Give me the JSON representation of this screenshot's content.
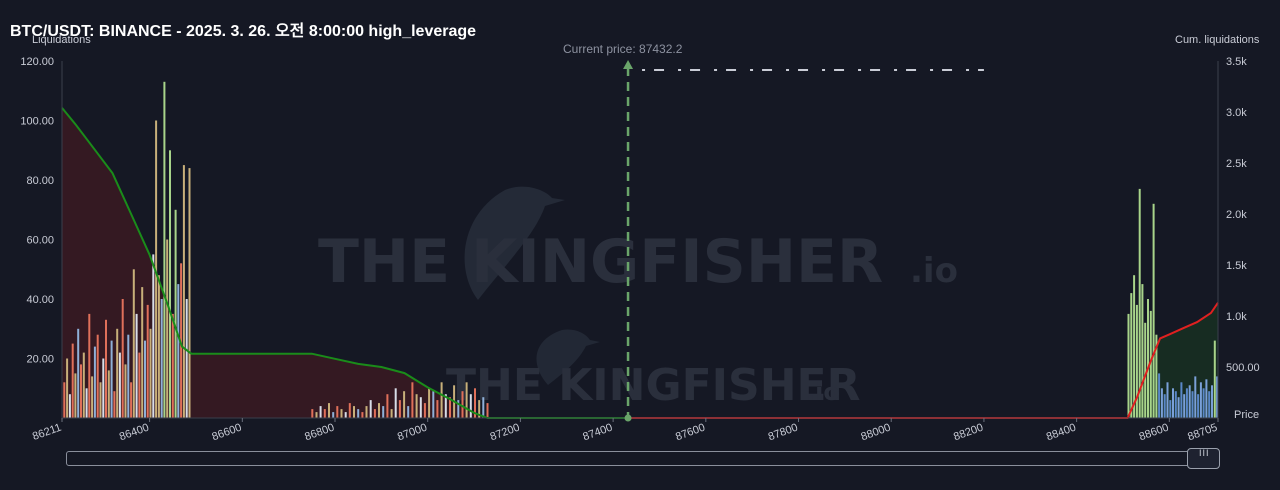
{
  "title": "BTC/USDT: BINANCE - 2025. 3. 26. 오전 8:00:00 high_leverage",
  "labels": {
    "left_axis": "Liquidations",
    "right_axis": "Cum. liquidations",
    "price": "Price",
    "current_price": "Current price: 87432.2"
  },
  "watermark": {
    "main": "THE KINGFISHER",
    "suffix": ".io"
  },
  "scrollbar": {
    "handle_glyph": "III"
  },
  "colors": {
    "background": "#151824",
    "long_cum": "#1a8c1a",
    "short_cum": "#e02020",
    "current_price": "#6aa56a",
    "bars_warm": "#e0705a",
    "bars_khaki": "#c8b07a",
    "bars_green": "#a8d48a",
    "bars_blue": "#5a88c8"
  },
  "chart_data": {
    "type": "bar",
    "title": "BTC/USDT: BINANCE - 2025. 3. 26. 오전 8:00:00 high_leverage",
    "xlabel": "Price",
    "ylabel": "Liquidations",
    "y2label": "Cum. liquidations",
    "xlim": [
      86211,
      88705
    ],
    "ylim": [
      0,
      120
    ],
    "y2lim": [
      0,
      3500
    ],
    "x_ticks": [
      "86211",
      "86400",
      "86600",
      "86800",
      "87000",
      "87200",
      "87400",
      "87600",
      "87800",
      "88000",
      "88200",
      "88400",
      "88600",
      "88705"
    ],
    "y_ticks": [
      "20.00",
      "40.00",
      "60.00",
      "80.00",
      "100.00",
      "120.00"
    ],
    "y2_ticks": [
      "500.00",
      "1.0k",
      "1.5k",
      "2.0k",
      "2.5k",
      "3.0k",
      "3.5k"
    ],
    "current_price": 87432.2,
    "legend": "none",
    "grid": false,
    "series": [
      {
        "name": "",
        "kind": "liquidation_bars_long_side",
        "x": [
          86216,
          86222,
          86228,
          86234,
          86240,
          86246,
          86252,
          86258,
          86264,
          86270,
          86276,
          86282,
          86288,
          86294,
          86300,
          86306,
          86312,
          86318,
          86324,
          86330,
          86336,
          86342,
          86348,
          86354,
          86360,
          86366,
          86372,
          86378,
          86384,
          86390,
          86396,
          86402,
          86408,
          86414,
          86420,
          86426,
          86432,
          86438,
          86444,
          86450,
          86456,
          86462,
          86468,
          86474,
          86480,
          86486
        ],
        "values": [
          12,
          20,
          8,
          25,
          15,
          30,
          18,
          22,
          10,
          35,
          14,
          24,
          28,
          12,
          20,
          33,
          16,
          26,
          9,
          30,
          22,
          40,
          18,
          28,
          12,
          50,
          35,
          22,
          44,
          26,
          38,
          30,
          55,
          100,
          48,
          40,
          113,
          60,
          90,
          35,
          70,
          45,
          52,
          85,
          40,
          84
        ]
      },
      {
        "name": "",
        "kind": "liquidation_bars_mid_cluster",
        "x": [
          86751,
          86760,
          86769,
          86778,
          86787,
          86796,
          86805,
          86814,
          86823,
          86832,
          86841,
          86850,
          86859,
          86868,
          86877,
          86886,
          86895,
          86904,
          86913,
          86922,
          86931,
          86940,
          86949,
          86958,
          86967,
          86976,
          86985,
          86994,
          87003,
          87012,
          87021,
          87030,
          87039,
          87048,
          87057,
          87066,
          87075,
          87084,
          87093,
          87102,
          87111,
          87120,
          87129
        ],
        "values": [
          3,
          2,
          4,
          3,
          5,
          2,
          4,
          3,
          2,
          5,
          4,
          3,
          2,
          4,
          6,
          3,
          5,
          4,
          8,
          3,
          10,
          6,
          9,
          4,
          12,
          8,
          7,
          5,
          10,
          9,
          6,
          12,
          8,
          7,
          11,
          6,
          9,
          12,
          8,
          10,
          6,
          7,
          5
        ]
      },
      {
        "name": "",
        "kind": "liquidation_bars_short_side",
        "x": [
          88512,
          88518,
          88524,
          88530,
          88536,
          88542,
          88548,
          88554,
          88560,
          88566,
          88572,
          88578,
          88584,
          88590,
          88596,
          88602,
          88608,
          88614,
          88620,
          88626,
          88632,
          88638,
          88644,
          88650,
          88656,
          88662,
          88668,
          88674,
          88680,
          88686,
          88692,
          88698,
          88703
        ],
        "values": [
          35,
          42,
          48,
          38,
          77,
          45,
          32,
          40,
          36,
          72,
          28,
          15,
          10,
          8,
          12,
          6,
          10,
          9,
          7,
          12,
          8,
          10,
          11,
          9,
          14,
          8,
          12,
          10,
          13,
          9,
          11,
          26,
          14
        ]
      },
      {
        "name": "",
        "kind": "cumulative_long_liquidations",
        "x": [
          86211,
          86240,
          86280,
          86320,
          86360,
          86400,
          86440,
          86470,
          86490,
          86550,
          86600,
          86650,
          86700,
          86750,
          86800,
          86850,
          86900,
          86950,
          87000,
          87050,
          87100,
          87129,
          87200,
          87432.2
        ],
        "values": [
          3040,
          2880,
          2640,
          2400,
          2000,
          1600,
          1100,
          700,
          630,
          630,
          630,
          630,
          630,
          630,
          580,
          530,
          500,
          440,
          300,
          180,
          50,
          0,
          0,
          0
        ]
      },
      {
        "name": "",
        "kind": "cumulative_short_liquidations",
        "x": [
          87432.2,
          87600,
          88000,
          88400,
          88510,
          88530,
          88560,
          88580,
          88600,
          88630,
          88660,
          88690,
          88705
        ],
        "values": [
          0,
          0,
          0,
          0,
          0,
          200,
          560,
          780,
          820,
          880,
          940,
          1030,
          1130
        ]
      }
    ]
  }
}
